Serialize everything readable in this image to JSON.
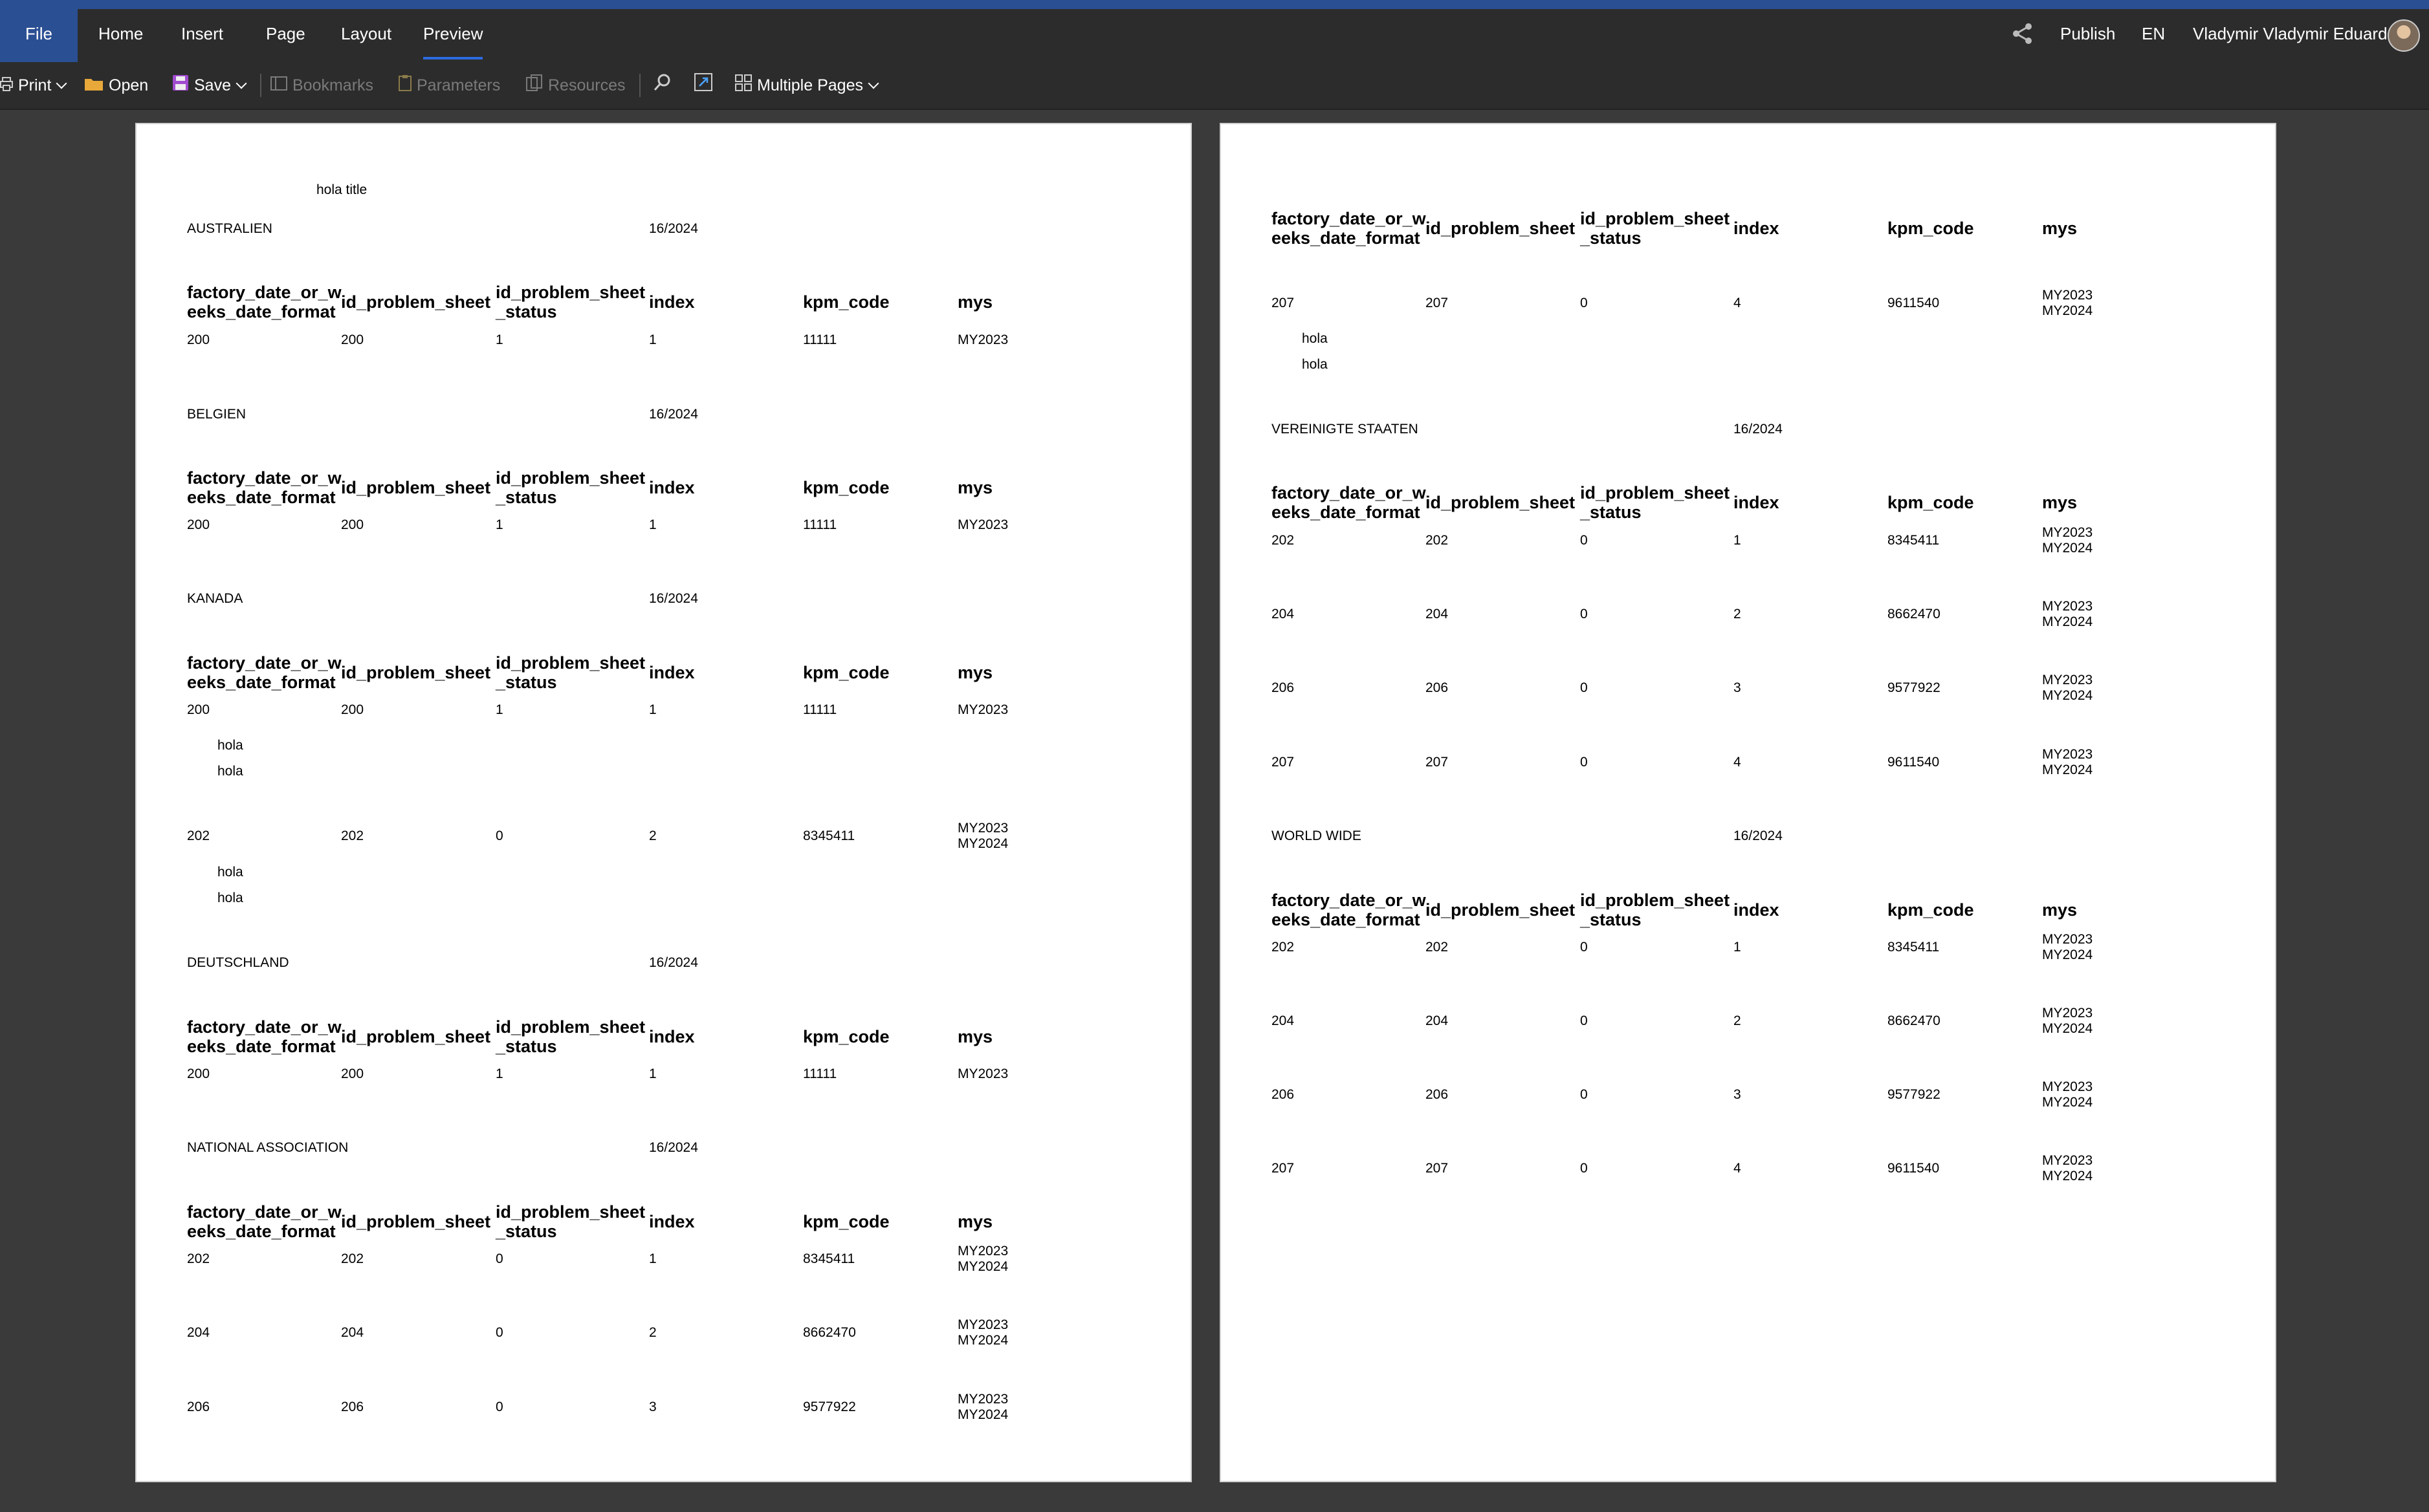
{
  "menu": {
    "file": "File",
    "home": "Home",
    "insert": "Insert",
    "page": "Page",
    "layout": "Layout",
    "preview": "Preview"
  },
  "header_right": {
    "publish": "Publish",
    "language": "EN",
    "user": "Vladymir Vladymir Eduardo"
  },
  "toolbar": {
    "print": "Print",
    "open": "Open",
    "save": "Save",
    "bookmarks": "Bookmarks",
    "parameters": "Parameters",
    "resources": "Resources",
    "multiple_pages": "Multiple Pages"
  },
  "columns": {
    "c1a": "factory_date_or_w",
    "c1b": "eeks_date_format",
    "c2": "id_problem_sheet",
    "c3a": "id_problem_sheet",
    "c3b": "_status",
    "c4": "index",
    "c5": "kpm_code",
    "c6": "mys"
  },
  "report": {
    "title": "hola title",
    "date": "16/2024",
    "note": "hola",
    "groups": {
      "australien": "AUSTRALIEN",
      "belgien": "BELGIEN",
      "kanada": "KANADA",
      "deutschland": "DEUTSCHLAND",
      "national": "NATIONAL ASSOCIATION",
      "usa": "VEREINIGTE STAATEN",
      "world": "WORLD WIDE"
    },
    "rows": {
      "r200": {
        "factory": "200",
        "sheet": "200",
        "status": "1",
        "index": "1",
        "kpm": "11111",
        "mys": "MY2023"
      },
      "r202": {
        "factory": "202",
        "sheet": "202",
        "status": "0",
        "index": "1",
        "kpm": "8345411",
        "mys1": "MY2023",
        "mys2": "MY2024"
      },
      "r202k": {
        "factory": "202",
        "sheet": "202",
        "status": "0",
        "index": "2",
        "kpm": "8345411",
        "mys1": "MY2023",
        "mys2": "MY2024"
      },
      "r204": {
        "factory": "204",
        "sheet": "204",
        "status": "0",
        "index": "2",
        "kpm": "8662470",
        "mys1": "MY2023",
        "mys2": "MY2024"
      },
      "r206": {
        "factory": "206",
        "sheet": "206",
        "status": "0",
        "index": "3",
        "kpm": "9577922",
        "mys1": "MY2023",
        "mys2": "MY2024"
      },
      "r207": {
        "factory": "207",
        "sheet": "207",
        "status": "0",
        "index": "4",
        "kpm": "9611540",
        "mys1": "MY2023",
        "mys2": "MY2024"
      }
    }
  }
}
